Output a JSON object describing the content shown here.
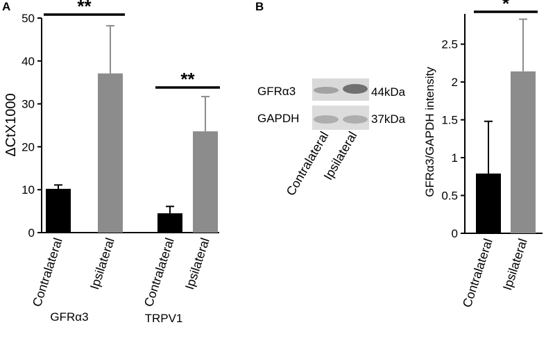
{
  "panels": {
    "a_letter": "A",
    "b_letter": "B"
  },
  "chart_data": [
    {
      "type": "bar",
      "panel": "A",
      "ylabel": "ΔCtX1000",
      "ylim": [
        0,
        50
      ],
      "yticks": [
        "0",
        "10",
        "20",
        "30",
        "40",
        "50"
      ],
      "groups": [
        "GFRα3",
        "TRPV1"
      ],
      "categories": [
        "Contralateral",
        "Ipsilateral",
        "Contralateral",
        "Ipsilateral"
      ],
      "values": [
        10.2,
        37.1,
        4.5,
        23.6
      ],
      "errors": [
        0.9,
        11.1,
        1.6,
        8.1
      ],
      "colors": [
        "#000000",
        "#8c8c8c",
        "#000000",
        "#8c8c8c"
      ],
      "significance": [
        {
          "label": "**",
          "between": [
            0,
            1
          ]
        },
        {
          "label": "**",
          "between": [
            2,
            3
          ]
        }
      ]
    },
    {
      "type": "bar",
      "panel": "B",
      "ylabel": "GFRα3/GAPDH intensity",
      "ylim": [
        0,
        2.9
      ],
      "yticks": [
        "0",
        "0.5",
        "1",
        "1.5",
        "2",
        "2.5"
      ],
      "categories": [
        "Contralateral",
        "Ipsilateral"
      ],
      "values": [
        0.79,
        2.14
      ],
      "errors": [
        0.69,
        0.69
      ],
      "colors": [
        "#000000",
        "#8c8c8c"
      ],
      "significance": [
        {
          "label": "*",
          "between": [
            0,
            1
          ]
        }
      ]
    }
  ],
  "blot": {
    "rows": [
      {
        "protein": "GFRα3",
        "size": "44kDa"
      },
      {
        "protein": "GAPDH",
        "size": "37kDa"
      }
    ],
    "lanes": [
      "Contralateral",
      "Ipsilateral"
    ]
  }
}
